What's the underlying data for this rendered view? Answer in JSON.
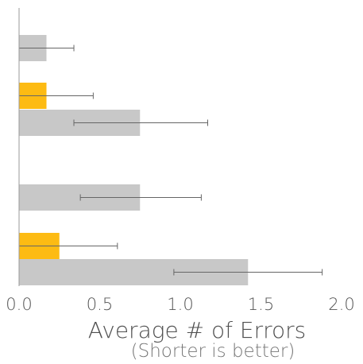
{
  "chart_data": {
    "type": "bar",
    "orientation": "horizontal",
    "title": "",
    "xlabel": "Average # of Errors",
    "xlabel_note": "(Shorter is better)",
    "xlim": [
      0,
      2.0
    ],
    "xticks": [
      "0.0",
      "0.5",
      "1.0",
      "1.5",
      "2.0"
    ],
    "grid": false,
    "colors": {
      "gray": "#c8c8c8",
      "yellow": "#fdbb13"
    },
    "bars": [
      {
        "color": "gray",
        "value": 0.17,
        "err_low": 0.0,
        "err_high": 0.34
      },
      {
        "color": "yellow",
        "value": 0.17,
        "err_low": 0.0,
        "err_high": 0.46
      },
      {
        "color": "gray",
        "value": 0.75,
        "err_low": 0.34,
        "err_high": 1.17
      },
      {
        "color": "gray",
        "value": 0.75,
        "err_low": 0.38,
        "err_high": 1.13
      },
      {
        "color": "yellow",
        "value": 0.25,
        "err_low": 0.0,
        "err_high": 0.61
      },
      {
        "color": "gray",
        "value": 1.42,
        "err_low": 0.96,
        "err_high": 1.88
      }
    ]
  }
}
